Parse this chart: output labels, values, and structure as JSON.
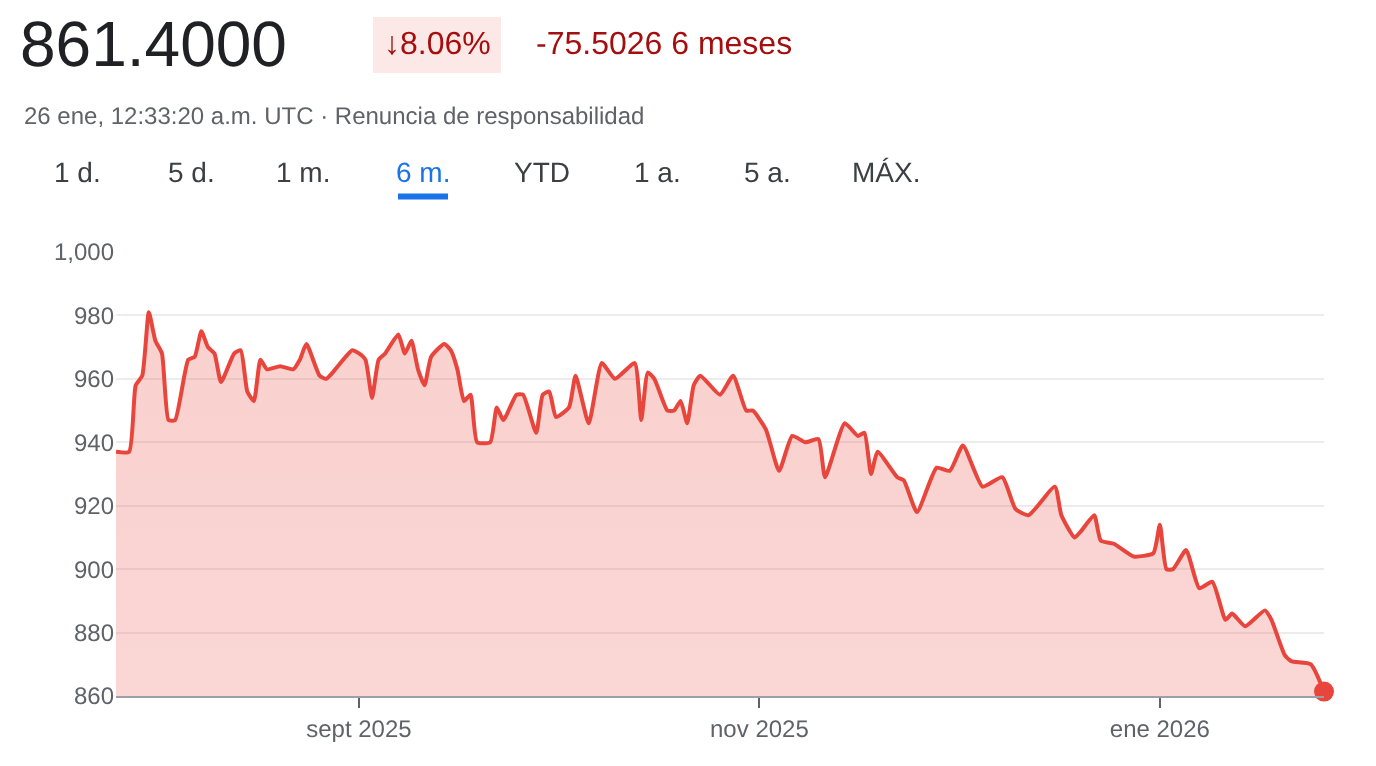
{
  "chart_data": {
    "type": "area",
    "title": "861.4000",
    "subtitle": "26 ene, 12:33:20 a.m. UTC · Renuncia de responsabilidad",
    "annotations": [
      "↓8.06%",
      "-75.5026 6 meses",
      "1 d.",
      "5 d.",
      "1 m.",
      "6 m.",
      "YTD",
      "1 a.",
      "5 a.",
      "MÁX."
    ],
    "x": [
      "2025-07-26",
      "2025-07-28",
      "2025-07-29",
      "2025-07-30",
      "2025-07-31",
      "2025-08-01",
      "2025-08-02",
      "2025-08-03",
      "2025-08-04",
      "2025-08-06",
      "2025-08-07",
      "2025-08-08",
      "2025-08-09",
      "2025-08-10",
      "2025-08-11",
      "2025-08-13",
      "2025-08-14",
      "2025-08-15",
      "2025-08-16",
      "2025-08-17",
      "2025-08-18",
      "2025-08-20",
      "2025-08-22",
      "2025-08-23",
      "2025-08-24",
      "2025-08-26",
      "2025-08-27",
      "2025-08-28",
      "2025-08-30",
      "2025-08-31",
      "2025-09-01",
      "2025-09-02",
      "2025-09-03",
      "2025-09-04",
      "2025-09-05",
      "2025-09-07",
      "2025-09-08",
      "2025-09-09",
      "2025-09-10",
      "2025-09-11",
      "2025-09-12",
      "2025-09-14",
      "2025-09-15",
      "2025-09-16",
      "2025-09-17",
      "2025-09-18",
      "2025-09-19",
      "2025-09-21",
      "2025-09-22",
      "2025-09-23",
      "2025-09-25",
      "2025-09-26",
      "2025-09-28",
      "2025-09-29",
      "2025-09-30",
      "2025-10-01",
      "2025-10-03",
      "2025-10-04",
      "2025-10-06",
      "2025-10-08",
      "2025-10-10",
      "2025-10-13",
      "2025-10-14",
      "2025-10-15",
      "2025-10-16",
      "2025-10-18",
      "2025-10-19",
      "2025-10-20",
      "2025-10-21",
      "2025-10-22",
      "2025-10-23",
      "2025-10-26",
      "2025-10-28",
      "2025-10-30",
      "2025-10-31",
      "2025-11-02",
      "2025-11-04",
      "2025-11-06",
      "2025-11-08",
      "2025-11-10",
      "2025-11-11",
      "2025-11-14",
      "2025-11-16",
      "2025-11-17",
      "2025-11-18",
      "2025-11-19",
      "2025-11-22",
      "2025-11-23",
      "2025-11-25",
      "2025-11-28",
      "2025-11-30",
      "2025-12-02",
      "2025-12-05",
      "2025-12-08",
      "2025-12-10",
      "2025-12-12",
      "2025-12-16",
      "2025-12-17",
      "2025-12-19",
      "2025-12-20",
      "2025-12-22",
      "2025-12-23",
      "2025-12-25",
      "2025-12-28",
      "2025-12-31",
      "2026-01-01",
      "2026-01-02",
      "2026-01-03",
      "2026-01-05",
      "2026-01-07",
      "2026-01-09",
      "2026-01-11",
      "2026-01-12",
      "2026-01-14",
      "2026-01-17",
      "2026-01-18",
      "2026-01-20",
      "2026-01-21",
      "2026-01-24",
      "2026-01-26"
    ],
    "series": [
      {
        "color": "#e8453c",
        "values": [
          937,
          937,
          958,
          961,
          981,
          972,
          968,
          947,
          947,
          966,
          967,
          975,
          970,
          968,
          959,
          968,
          969,
          956,
          953,
          966,
          963,
          964,
          963,
          966,
          971,
          961,
          960,
          962,
          967,
          969,
          968,
          966,
          954,
          966,
          968,
          974,
          968,
          972,
          963,
          958,
          967,
          971,
          969,
          963,
          953,
          955,
          940,
          940,
          951,
          947,
          955,
          955,
          943,
          955,
          956,
          948,
          951,
          961,
          946,
          965,
          960,
          965,
          947,
          962,
          960,
          950,
          950,
          953,
          946,
          958,
          961,
          955,
          961,
          950,
          950,
          944,
          931,
          942,
          940,
          941,
          929,
          946,
          942,
          943,
          930,
          937,
          929,
          928,
          918,
          932,
          931,
          939,
          926,
          929,
          919,
          917,
          926,
          917,
          910,
          912,
          917,
          909,
          908,
          904,
          905,
          914,
          900,
          900,
          906,
          894,
          896,
          884,
          886,
          882,
          887,
          884,
          873,
          871,
          870,
          861.4
        ]
      }
    ],
    "xlim": [
      "2025-07-26",
      "2026-01-26"
    ],
    "xticks": [
      {
        "value": "2025-09-01",
        "label": "sept 2025"
      },
      {
        "value": "2025-11-01",
        "label": "nov 2025"
      },
      {
        "value": "2026-01-01",
        "label": "ene 2026"
      }
    ],
    "ylim": [
      860,
      1000
    ],
    "yticks": [
      860,
      880,
      900,
      920,
      940,
      960,
      980,
      {
        "value": 1000,
        "label": "1,000"
      }
    ],
    "grid": "y"
  }
}
